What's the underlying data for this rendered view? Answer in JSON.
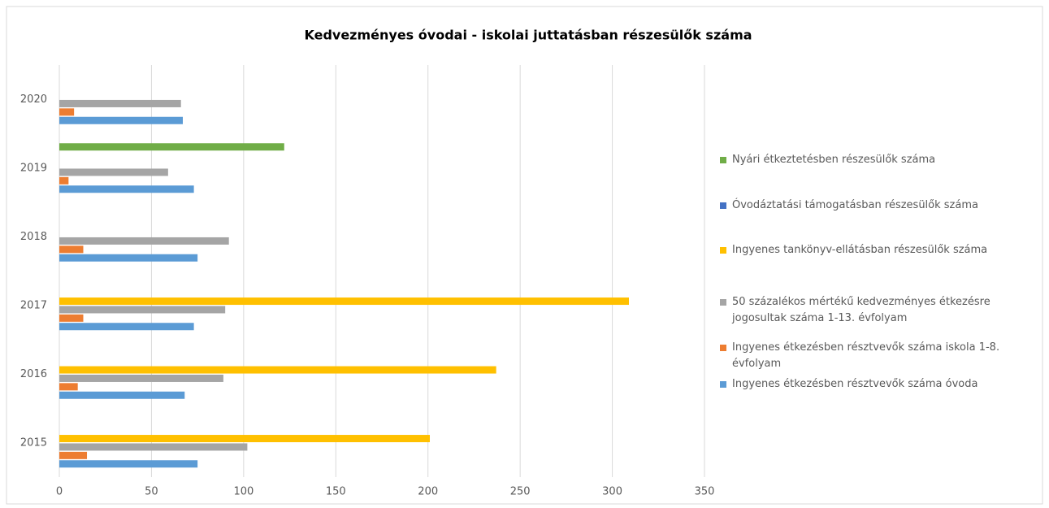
{
  "chart_data": {
    "type": "bar",
    "orientation": "horizontal",
    "title": "Kedvezményes óvodai - iskolai juttatásban részesülők száma",
    "categories": [
      "2015",
      "2016",
      "2017",
      "2018",
      "2019",
      "2020"
    ],
    "series": [
      {
        "name": "Ingyenes étkezésben résztvevők száma óvoda",
        "color": "#5b9bd5",
        "values": [
          75,
          68,
          73,
          75,
          73,
          67
        ]
      },
      {
        "name": "Ingyenes étkezésben résztvevők száma iskola 1-8. évfolyam",
        "color": "#ed7d31",
        "values": [
          15,
          10,
          13,
          13,
          5,
          8
        ]
      },
      {
        "name": "50 százalékos mértékű kedvezményes étkezésre jogosultak száma 1-13. évfolyam",
        "color": "#a5a5a5",
        "values": [
          102,
          89,
          90,
          92,
          59,
          66
        ]
      },
      {
        "name": "Ingyenes tankönyv-ellátásban részesülők száma",
        "color": "#ffc000",
        "values": [
          201,
          237,
          309,
          null,
          null,
          null
        ]
      },
      {
        "name": "Óvodáztatási támogatásban részesülők száma",
        "color": "#4472c4",
        "values": [
          null,
          null,
          null,
          null,
          null,
          null
        ]
      },
      {
        "name": "Nyári étkeztetésben részesülők száma",
        "color": "#70ad47",
        "values": [
          null,
          null,
          null,
          null,
          122,
          null
        ]
      }
    ],
    "xlim": [
      0,
      350
    ],
    "xticks": [
      0,
      50,
      100,
      150,
      200,
      250,
      300,
      350
    ],
    "grid": true,
    "legend": "right"
  }
}
